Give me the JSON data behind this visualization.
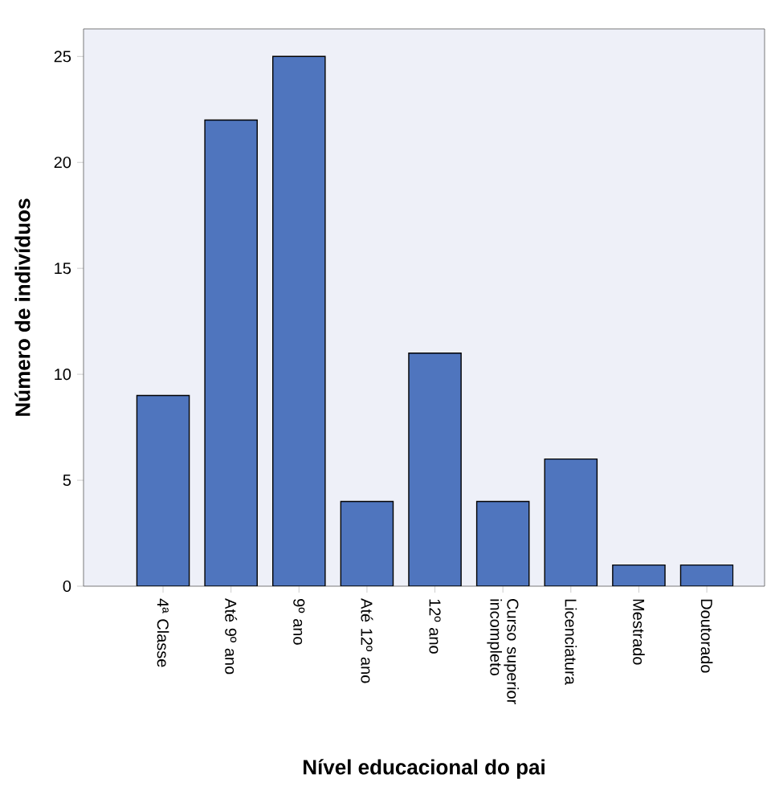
{
  "chart_data": {
    "type": "bar",
    "xlabel": "Nível educacional do pai",
    "ylabel": "Número de indivíduos",
    "categories": [
      "4ª Classe",
      "Até 9º ano",
      "9º ano",
      "Até 12º ano",
      "12º ano",
      "Curso superior incompleto",
      "Licenciatura",
      "Mestrado",
      "Doutorado"
    ],
    "values": [
      9,
      22,
      25,
      4,
      11,
      4,
      6,
      1,
      1
    ],
    "color": "#4f75be",
    "ylim": [
      0,
      26.3
    ],
    "yticks": [
      0,
      5,
      10,
      15,
      20,
      25
    ],
    "grid": false
  }
}
